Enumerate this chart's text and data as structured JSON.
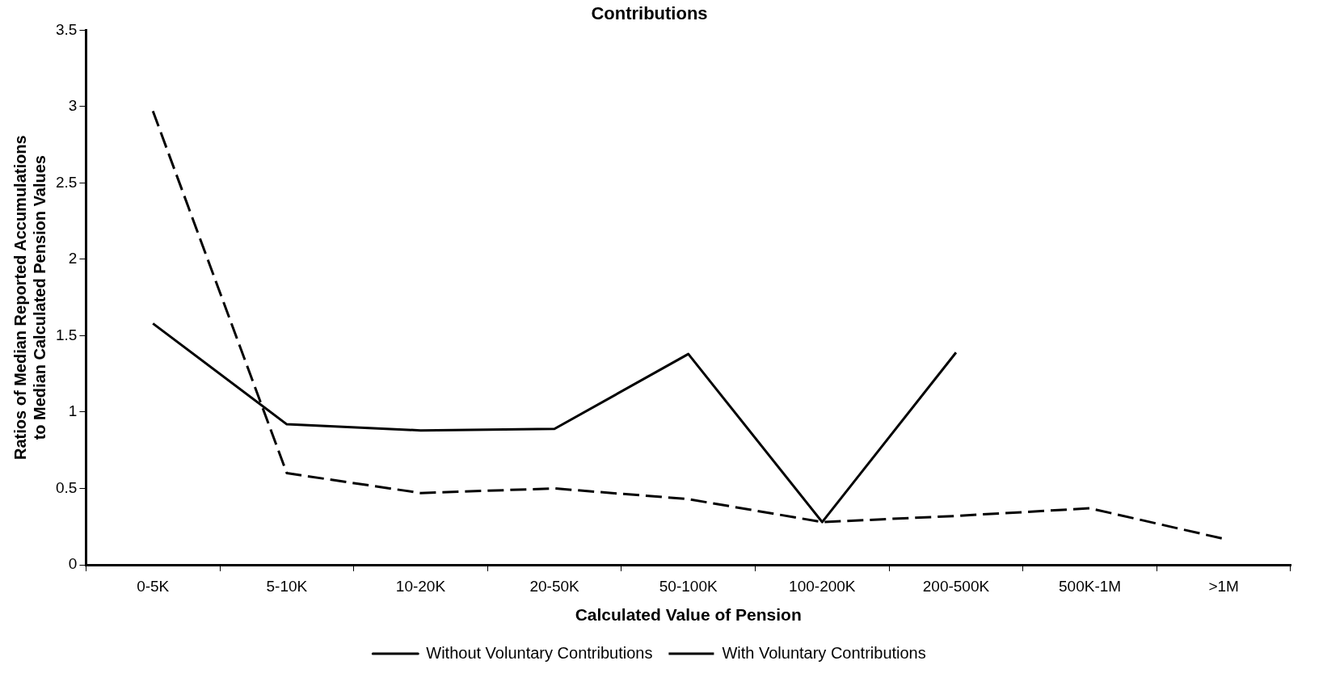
{
  "chart_data": {
    "type": "line",
    "title": "Contributions",
    "xlabel": "Calculated Value of Pension",
    "ylabel": "Ratios of Median Reported Accumulations to Median Calculated Pension Values",
    "categories": [
      "0-5K",
      "5-10K",
      "10-20K",
      "20-50K",
      "50-100K",
      "100-200K",
      "200-500K",
      "500K-1M",
      ">1M"
    ],
    "series": [
      {
        "name": "Without Voluntary Contributions",
        "color": "#000000",
        "line_style": "solid",
        "values": [
          1.58,
          0.92,
          0.88,
          0.89,
          1.38,
          0.28,
          1.39,
          null,
          null
        ]
      },
      {
        "name": "With Voluntary Contributions",
        "color": "#000000",
        "line_style": "dashed",
        "values": [
          2.97,
          0.6,
          0.47,
          0.5,
          0.43,
          0.28,
          0.32,
          0.37,
          0.17
        ]
      }
    ],
    "ylim": [
      0,
      3.5
    ],
    "yticks": [
      0,
      0.5,
      1,
      1.5,
      2,
      2.5,
      3,
      3.5
    ],
    "grid": false,
    "legend": "bottom",
    "marker": "none"
  }
}
